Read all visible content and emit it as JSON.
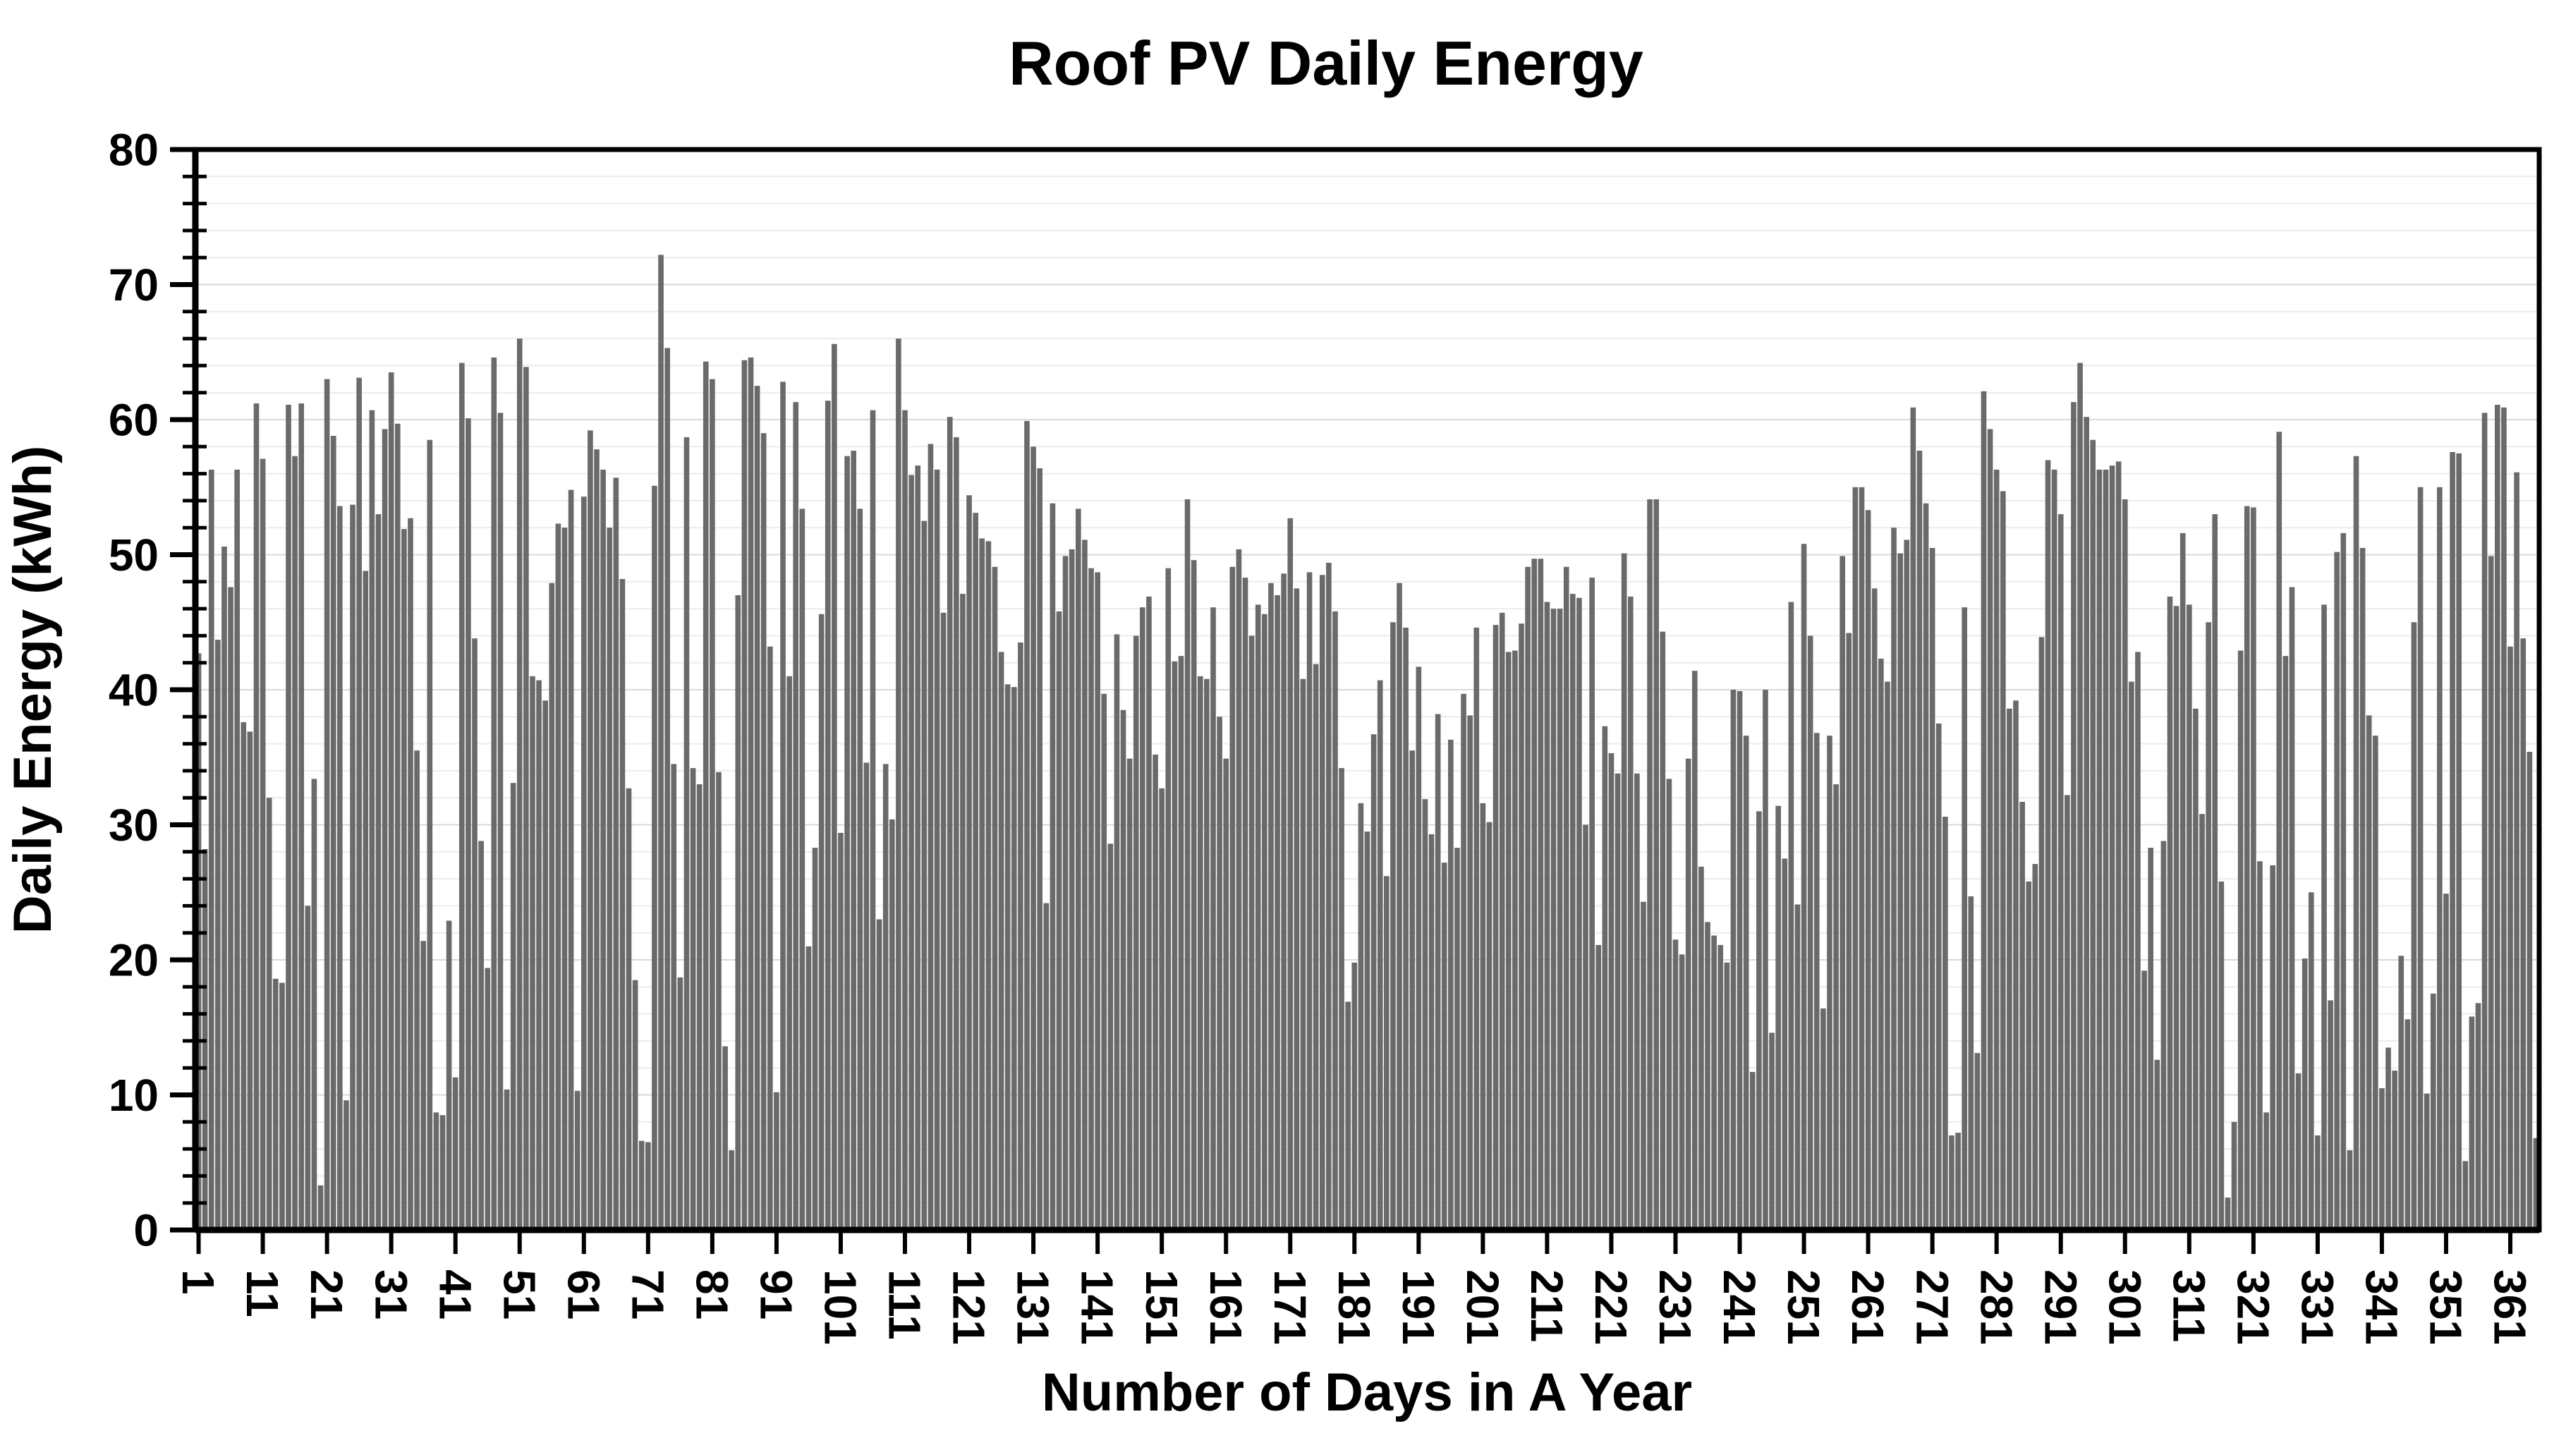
{
  "chart_data": {
    "type": "bar",
    "title": "Roof PV Daily Energy",
    "xlabel": "Number of Days in A Year",
    "ylabel": "Daily Energy (kWh)",
    "ylim": [
      0,
      80
    ],
    "y_major_step": 10,
    "y_minor_step": 2,
    "grid": "minor horizontal gridlines on",
    "legend": "none",
    "bar_color": "#6a6a6a",
    "grid_minor_color": "#ececec",
    "grid_major_color": "#d9d9d9",
    "axis_color": "#000000",
    "x_tick_labels": [
      "1",
      "11",
      "21",
      "31",
      "41",
      "51",
      "61",
      "71",
      "81",
      "91",
      "101",
      "111",
      "121",
      "131",
      "141",
      "151",
      "161",
      "171",
      "181",
      "191",
      "201",
      "211",
      "221",
      "231",
      "241",
      "251",
      "261",
      "271",
      "281",
      "291",
      "301",
      "311",
      "321",
      "331",
      "341",
      "351",
      "361"
    ],
    "x_tick_step": 10,
    "days_start": 1,
    "days_end": 365,
    "values": [
      42.7,
      28.2,
      56.3,
      43.7,
      50.6,
      47.6,
      56.3,
      37.6,
      36.9,
      61.2,
      57.1,
      32,
      18.6,
      18.3,
      61.1,
      57.3,
      61.2,
      24,
      33.4,
      3.3,
      63,
      58.8,
      53.6,
      9.6,
      53.7,
      63.1,
      48.8,
      60.7,
      53,
      59.3,
      63.5,
      59.7,
      51.9,
      52.7,
      35.5,
      21.4,
      58.5,
      8.7,
      8.5,
      22.9,
      11.3,
      64.2,
      60.1,
      43.8,
      28.8,
      19.4,
      64.6,
      60.5,
      10.4,
      33.1,
      66,
      63.9,
      41,
      40.7,
      39.2,
      47.9,
      52.3,
      52,
      54.8,
      10.3,
      54.3,
      59.2,
      57.8,
      56.3,
      52,
      55.7,
      48.2,
      32.7,
      18.5,
      6.6,
      6.5,
      55.1,
      72.2,
      65.3,
      34.5,
      18.7,
      58.7,
      34.2,
      33,
      64.3,
      63,
      33.9,
      13.6,
      5.9,
      47,
      64.4,
      64.6,
      62.5,
      59,
      43.2,
      10.2,
      62.8,
      41,
      61.3,
      53.4,
      21,
      28.3,
      45.6,
      61.4,
      65.6,
      29.4,
      57.3,
      57.7,
      53.4,
      34.6,
      60.7,
      23,
      34.5,
      30.4,
      66,
      60.7,
      55.9,
      56.6,
      52.5,
      58.2,
      56.3,
      45.7,
      60.2,
      58.7,
      47.1,
      54.4,
      53.1,
      51.2,
      51,
      49.1,
      42.8,
      40.4,
      40.2,
      43.5,
      59.9,
      58,
      56.4,
      24.2,
      53.8,
      45.8,
      49.9,
      50.4,
      53.4,
      51.1,
      49,
      48.7,
      39.7,
      28.6,
      44.1,
      38.5,
      34.9,
      44,
      46.1,
      46.9,
      35.2,
      32.7,
      49,
      42.1,
      42.5,
      54.1,
      49.6,
      41,
      40.8,
      46.1,
      38,
      34.9,
      49.1,
      50.4,
      48.3,
      44,
      46.3,
      45.6,
      47.9,
      47,
      48.6,
      52.7,
      47.5,
      40.8,
      48.7,
      41.9,
      48.5,
      49.4,
      45.8,
      34.2,
      16.9,
      19.8,
      31.6,
      29.5,
      36.7,
      40.7,
      26.2,
      45,
      47.9,
      44.6,
      35.5,
      41.7,
      31.9,
      29.3,
      38.2,
      27.2,
      36.3,
      28.3,
      39.7,
      38.1,
      44.6,
      31.6,
      30.2,
      44.8,
      45.7,
      42.8,
      42.9,
      44.9,
      49.1,
      49.7,
      49.7,
      46.5,
      46,
      46,
      49.1,
      47.1,
      46.8,
      30,
      48.3,
      21.1,
      37.3,
      35.3,
      33.8,
      50.1,
      46.9,
      33.8,
      24.3,
      54.1,
      54.1,
      44.3,
      33.4,
      21.5,
      20.4,
      34.9,
      41.4,
      26.9,
      22.8,
      21.8,
      21.1,
      19.8,
      40,
      39.9,
      36.6,
      11.7,
      31,
      40,
      14.6,
      31.4,
      27.5,
      46.5,
      24.1,
      50.8,
      44,
      36.8,
      16.4,
      36.6,
      33,
      49.9,
      44.2,
      55,
      55,
      53.3,
      47.5,
      42.3,
      40.6,
      52,
      50.1,
      51.1,
      60.9,
      57.7,
      53.8,
      50.5,
      37.5,
      30.6,
      7,
      7.2,
      46.1,
      24.7,
      13.1,
      62.1,
      59.3,
      56.3,
      54.7,
      38.6,
      39.2,
      31.7,
      25.8,
      27.1,
      43.9,
      57,
      56.3,
      53,
      32.2,
      61.3,
      64.2,
      60.2,
      58.5,
      56.3,
      56.3,
      56.6,
      56.9,
      54.1,
      40.6,
      42.8,
      19.2,
      28.3,
      12.6,
      28.8,
      46.9,
      46.2,
      51.6,
      46.3,
      38.6,
      30.8,
      45,
      53,
      25.8,
      2.4,
      8,
      42.9,
      53.6,
      53.5,
      27.3,
      8.7,
      27,
      59.1,
      42.5,
      47.6,
      11.6,
      20.1,
      25,
      7,
      46.3,
      17,
      50.2,
      51.6,
      5.9,
      57.3,
      50.5,
      38.1,
      36.6,
      10.5,
      13.5,
      11.8,
      20.3,
      15.6,
      45,
      55,
      10.1,
      17.5,
      55,
      24.9,
      57.6,
      57.5,
      5.1,
      15.8,
      16.8,
      60.5,
      49.9,
      61.1,
      60.9,
      43.2,
      56.1,
      43.8,
      35.4,
      6.8
    ]
  }
}
